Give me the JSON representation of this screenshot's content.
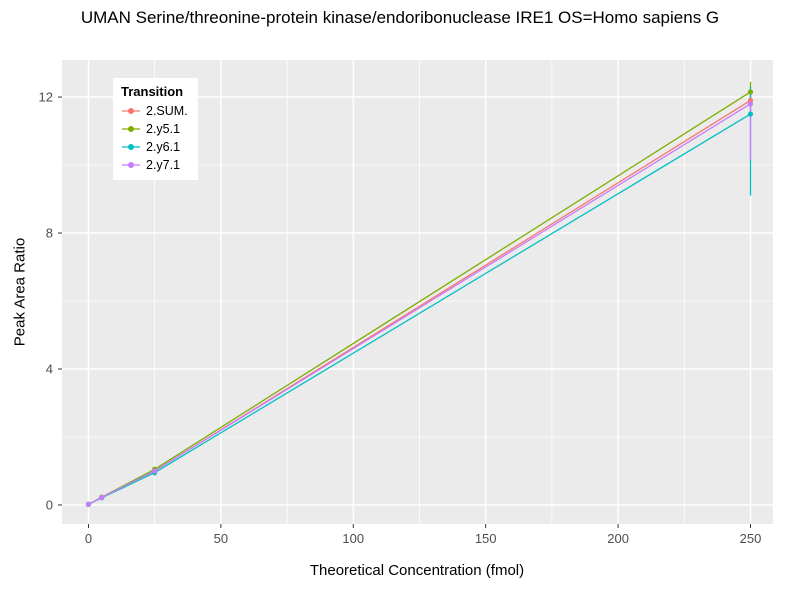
{
  "header": {
    "title_visible": "UMAN Serine/threonine-protein kinase/endoribonuclease IRE1 OS=Homo sapiens G"
  },
  "chart_data": {
    "type": "line",
    "title": "UMAN Serine/threonine-protein kinase/endoribonuclease IRE1 OS=Homo sapiens G",
    "xlabel": "Theoretical Concentration (fmol)",
    "ylabel": "Peak Area Ratio",
    "legend_title": "Transition",
    "legend_position": "top-left-inside",
    "grid": "on",
    "panel_bg": "#EBEBEB",
    "grid_color": "#FFFFFF",
    "tick_label_color": "#4D4D4D",
    "xlim": [
      -10,
      258.5
    ],
    "ylim": [
      -0.56,
      13.09
    ],
    "x_ticks": [
      0,
      50,
      100,
      150,
      200,
      250
    ],
    "y_ticks": [
      0,
      4,
      8,
      12
    ],
    "x_minor_ticks": [
      25,
      75,
      125,
      175,
      225
    ],
    "y_minor_ticks": [
      2,
      6,
      10
    ],
    "x": [
      0,
      5,
      25,
      250
    ],
    "series": [
      {
        "name": "2.SUM.",
        "color": "#F8766D",
        "values": [
          0.02,
          0.22,
          1.0,
          11.9
        ],
        "errors": [
          {
            "x": 25,
            "lo": 0.86,
            "hi": 1.12
          },
          {
            "x": 250,
            "lo": 11.55,
            "hi": 12.2
          }
        ]
      },
      {
        "name": "2.y5.1",
        "color": "#7CAE00",
        "values": [
          0.02,
          0.23,
          1.05,
          12.15
        ],
        "errors": [
          {
            "x": 250,
            "lo": 11.9,
            "hi": 12.45
          }
        ]
      },
      {
        "name": "2.y6.1",
        "color": "#00BFC4",
        "values": [
          0.02,
          0.21,
          0.95,
          11.5
        ],
        "errors": [
          {
            "x": 250,
            "lo": 9.1,
            "hi": 12.3
          }
        ]
      },
      {
        "name": "2.y7.1",
        "color": "#C77CFF",
        "values": [
          0.02,
          0.22,
          1.0,
          11.8
        ],
        "errors": [
          {
            "x": 250,
            "lo": 10.15,
            "hi": 11.9
          }
        ]
      }
    ]
  }
}
